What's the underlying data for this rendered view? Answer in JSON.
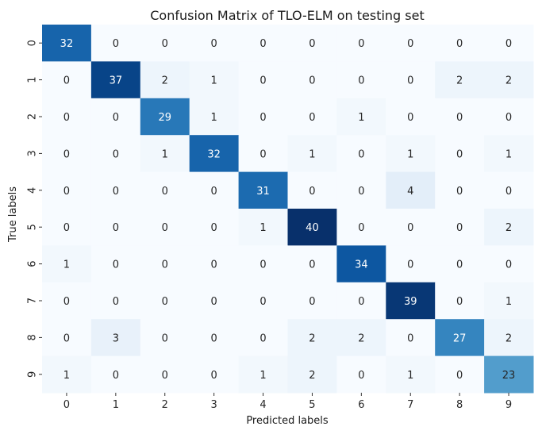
{
  "chart_data": {
    "type": "heatmap",
    "title": "Confusion Matrix of TLO-ELM on testing set",
    "xlabel": "Predicted labels",
    "ylabel": "True labels",
    "x_tick_labels": [
      "0",
      "1",
      "2",
      "3",
      "4",
      "5",
      "6",
      "7",
      "8",
      "9"
    ],
    "y_tick_labels": [
      "0",
      "1",
      "2",
      "3",
      "4",
      "5",
      "6",
      "7",
      "8",
      "9"
    ],
    "matrix": [
      [
        32,
        0,
        0,
        0,
        0,
        0,
        0,
        0,
        0,
        0
      ],
      [
        0,
        37,
        2,
        1,
        0,
        0,
        0,
        0,
        2,
        2
      ],
      [
        0,
        0,
        29,
        1,
        0,
        0,
        1,
        0,
        0,
        0
      ],
      [
        0,
        0,
        1,
        32,
        0,
        1,
        0,
        1,
        0,
        1
      ],
      [
        0,
        0,
        0,
        0,
        31,
        0,
        0,
        4,
        0,
        0
      ],
      [
        0,
        0,
        0,
        0,
        1,
        40,
        0,
        0,
        0,
        2
      ],
      [
        1,
        0,
        0,
        0,
        0,
        0,
        34,
        0,
        0,
        0
      ],
      [
        0,
        0,
        0,
        0,
        0,
        0,
        0,
        39,
        0,
        1
      ],
      [
        0,
        3,
        0,
        0,
        0,
        2,
        2,
        0,
        27,
        2
      ],
      [
        1,
        0,
        0,
        0,
        1,
        2,
        0,
        1,
        0,
        23
      ]
    ],
    "colormap": "Blues",
    "value_range": [
      0,
      40
    ],
    "colorbar": false,
    "annotations": true
  }
}
